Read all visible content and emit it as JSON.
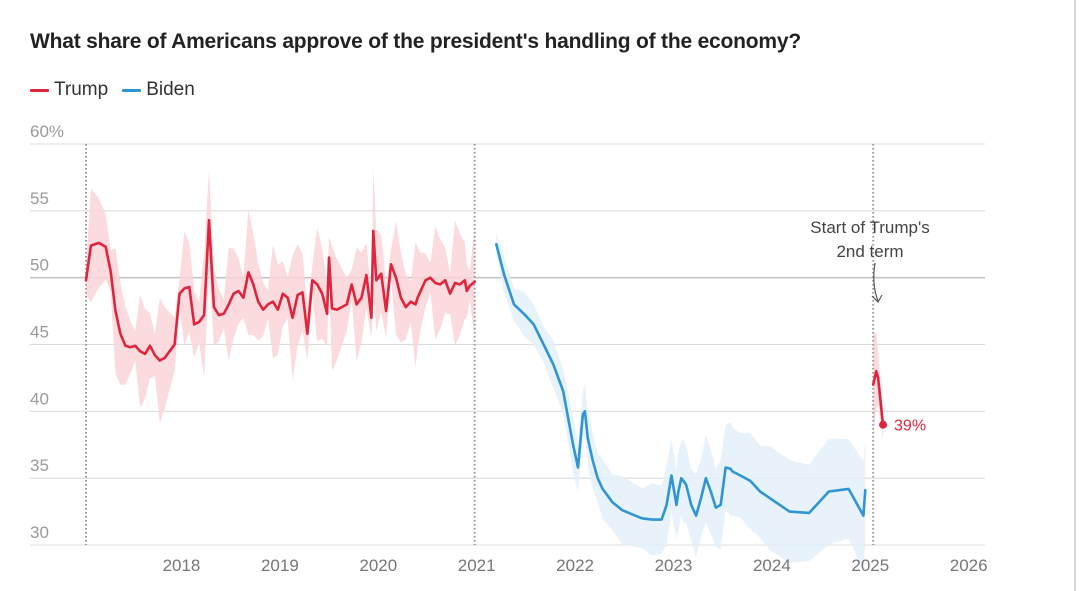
{
  "chart_data": {
    "type": "line",
    "title": "What share of Americans approve of the president's handling of the economy?",
    "y_unit_label": "60%",
    "ylim": [
      30,
      60
    ],
    "y_ticks": [
      30,
      35,
      40,
      45,
      50,
      55,
      60
    ],
    "y_tick_labels": [
      "30",
      "35",
      "40",
      "45",
      "50",
      "55",
      "60%"
    ],
    "x_ticks": [
      2018,
      2019,
      2020,
      2021,
      2022,
      2023,
      2024,
      2025,
      2026
    ],
    "x_tick_labels": [
      "2018",
      "2019",
      "2020",
      "2021",
      "2022",
      "2023",
      "2024",
      "2025",
      "2026"
    ],
    "xlim": [
      2017.0,
      2026.2
    ],
    "grid": "horizontal",
    "legend_position": "top-left",
    "term_markers": [
      2017.05,
      2021.0,
      2025.05
    ],
    "series": [
      {
        "name": "Trump",
        "color": "#e0243c",
        "band_color": "#fbd5d9",
        "x": [
          2017.05,
          2017.1,
          2017.18,
          2017.25,
          2017.3,
          2017.35,
          2017.4,
          2017.45,
          2017.5,
          2017.55,
          2017.6,
          2017.65,
          2017.7,
          2017.75,
          2017.8,
          2017.85,
          2017.9,
          2017.95,
          2018.0,
          2018.05,
          2018.1,
          2018.15,
          2018.2,
          2018.25,
          2018.3,
          2018.35,
          2018.4,
          2018.45,
          2018.5,
          2018.55,
          2018.6,
          2018.65,
          2018.7,
          2018.75,
          2018.8,
          2018.85,
          2018.9,
          2018.95,
          2019.0,
          2019.05,
          2019.1,
          2019.15,
          2019.2,
          2019.25,
          2019.3,
          2019.35,
          2019.4,
          2019.45,
          2019.5,
          2019.52,
          2019.55,
          2019.6,
          2019.65,
          2019.7,
          2019.75,
          2019.8,
          2019.85,
          2019.9,
          2019.95,
          2019.97,
          2020.0,
          2020.05,
          2020.1,
          2020.15,
          2020.2,
          2020.25,
          2020.3,
          2020.35,
          2020.4,
          2020.42,
          2020.45,
          2020.5,
          2020.55,
          2020.6,
          2020.65,
          2020.7,
          2020.75,
          2020.8,
          2020.85,
          2020.9,
          2020.92,
          2020.95,
          2021.0
        ],
        "values": [
          49.8,
          52.4,
          52.6,
          52.3,
          50.5,
          47.5,
          45.8,
          44.9,
          44.8,
          44.9,
          44.5,
          44.3,
          44.9,
          44.2,
          43.8,
          44.0,
          44.5,
          45.0,
          48.8,
          49.2,
          49.3,
          46.5,
          46.7,
          47.2,
          54.3,
          47.8,
          47.2,
          47.3,
          48.0,
          48.8,
          49.0,
          48.5,
          50.4,
          49.5,
          48.2,
          47.6,
          48.0,
          48.2,
          47.6,
          48.8,
          48.5,
          47.0,
          48.7,
          48.9,
          45.8,
          49.8,
          49.5,
          48.8,
          47.3,
          51.5,
          47.7,
          47.6,
          47.8,
          48.0,
          49.5,
          48.0,
          48.5,
          50.2,
          47.0,
          53.5,
          49.8,
          50.3,
          47.5,
          51.0,
          50.0,
          48.5,
          47.8,
          48.2,
          48.0,
          48.5,
          49.0,
          49.8,
          50.0,
          49.6,
          49.5,
          49.8,
          48.8,
          49.6,
          49.5,
          49.8,
          49.0,
          49.4,
          49.7
        ]
      },
      {
        "name": "Biden",
        "color": "#2f95d3",
        "band_color": "#e3f0fa",
        "x": [
          2021.22,
          2021.3,
          2021.4,
          2021.5,
          2021.6,
          2021.7,
          2021.8,
          2021.9,
          2022.0,
          2022.05,
          2022.1,
          2022.12,
          2022.15,
          2022.17,
          2022.2,
          2022.25,
          2022.3,
          2022.4,
          2022.5,
          2022.6,
          2022.7,
          2022.8,
          2022.9,
          2022.95,
          2023.0,
          2023.05,
          2023.07,
          2023.1,
          2023.12,
          2023.15,
          2023.2,
          2023.25,
          2023.3,
          2023.35,
          2023.4,
          2023.45,
          2023.5,
          2023.55,
          2023.6,
          2023.62,
          2023.7,
          2023.8,
          2023.9,
          2024.0,
          2024.2,
          2024.4,
          2024.6,
          2024.8,
          2024.95,
          2024.97
        ],
        "values": [
          52.5,
          50.2,
          48.0,
          47.3,
          46.5,
          45.0,
          43.5,
          41.5,
          37.5,
          35.8,
          39.8,
          40.0,
          38.0,
          37.3,
          36.3,
          35.0,
          34.2,
          33.2,
          32.6,
          32.3,
          32.0,
          31.9,
          31.9,
          33.0,
          35.2,
          33.0,
          34.0,
          35.0,
          34.8,
          34.5,
          33.0,
          32.2,
          33.5,
          35.0,
          34.0,
          32.8,
          33.0,
          35.8,
          35.7,
          35.5,
          35.2,
          34.8,
          34.0,
          33.5,
          32.5,
          32.4,
          34.0,
          34.2,
          32.2,
          34.1
        ]
      },
      {
        "name": "Trump",
        "color": "#e0243c",
        "band_color": "#fbd5d9",
        "x": [
          2025.05,
          2025.08,
          2025.1,
          2025.15
        ],
        "values": [
          42.0,
          43.0,
          42.5,
          39.0
        ]
      }
    ],
    "annotations": [
      {
        "text_lines": [
          "Start of Trump's",
          "2nd term"
        ]
      },
      {
        "text": "39%"
      }
    ]
  }
}
